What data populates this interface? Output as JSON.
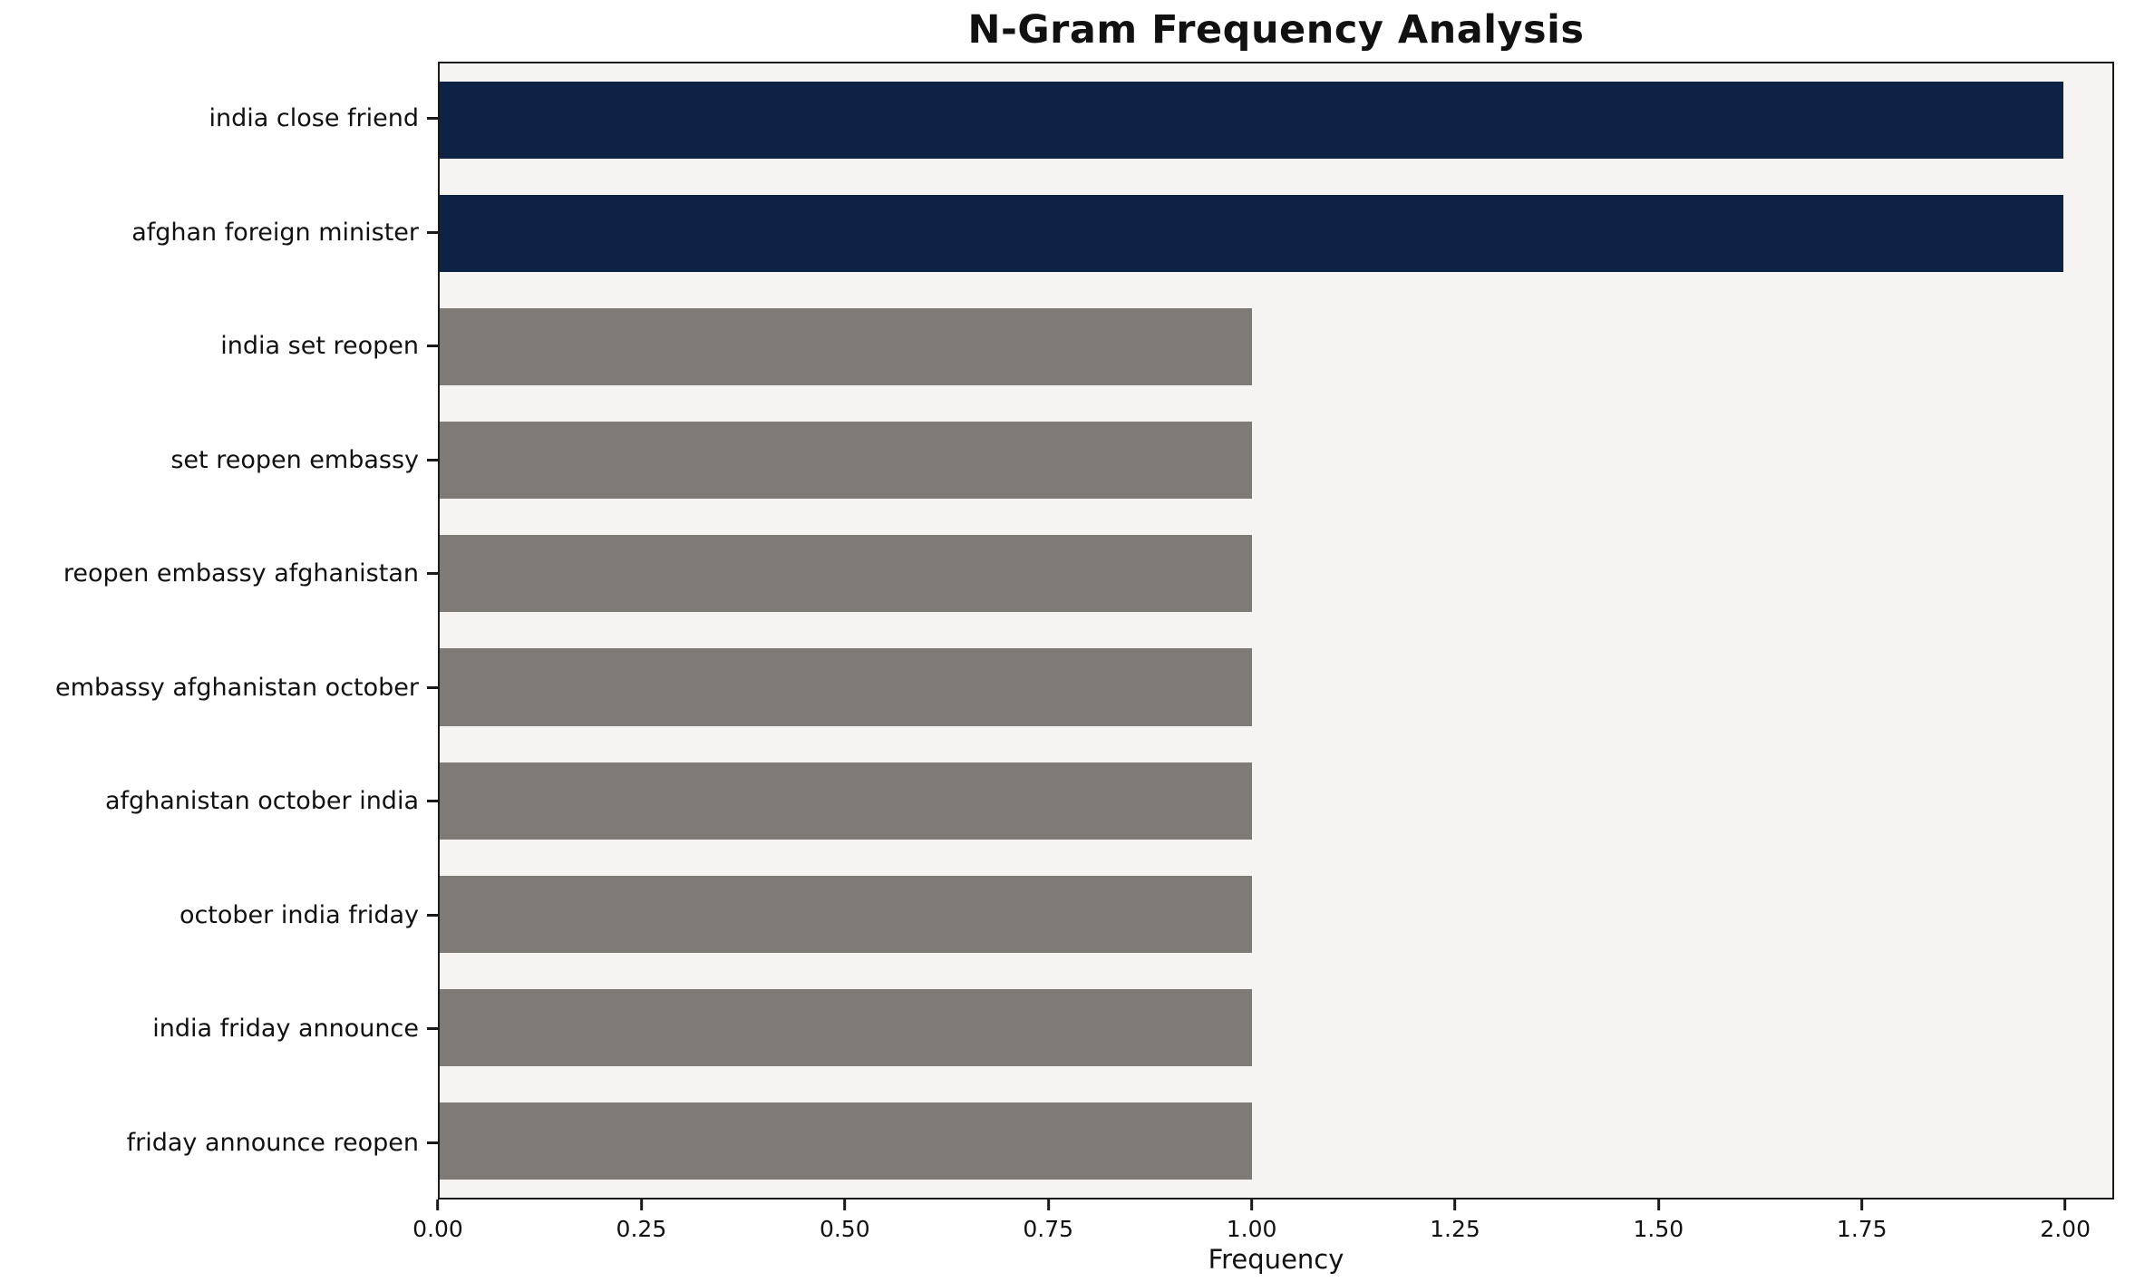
{
  "chart_data": {
    "type": "bar",
    "orientation": "horizontal",
    "title": "N-Gram Frequency Analysis",
    "xlabel": "Frequency",
    "ylabel": "",
    "categories": [
      "india close friend",
      "afghan foreign minister",
      "india set reopen",
      "set reopen embassy",
      "reopen embassy afghanistan",
      "embassy afghanistan october",
      "afghanistan october india",
      "october india friday",
      "india friday announce",
      "friday announce reopen"
    ],
    "values": [
      2,
      2,
      1,
      1,
      1,
      1,
      1,
      1,
      1,
      1
    ],
    "bar_colors": [
      "#0d2245",
      "#0d2245",
      "#7e7b76",
      "#7e7b76",
      "#7e7b76",
      "#7e7b76",
      "#7e7b76",
      "#7e7b76",
      "#7e7b76",
      "#7e7b76"
    ],
    "highlight_color": "#0d2245",
    "default_bar_color": "#7e7b76",
    "xticks": [
      0,
      0.25,
      0.5,
      0.75,
      1.0,
      1.25,
      1.5,
      1.75,
      2.0
    ],
    "xtick_labels": [
      "0.00",
      "0.25",
      "0.50",
      "0.75",
      "1.00",
      "1.25",
      "1.50",
      "1.75",
      "2.00"
    ],
    "xlim": [
      0,
      2.06
    ],
    "grid": false,
    "legend": "none",
    "plot_background": "#f5f4f2",
    "figure_background": "#ffffff"
  }
}
